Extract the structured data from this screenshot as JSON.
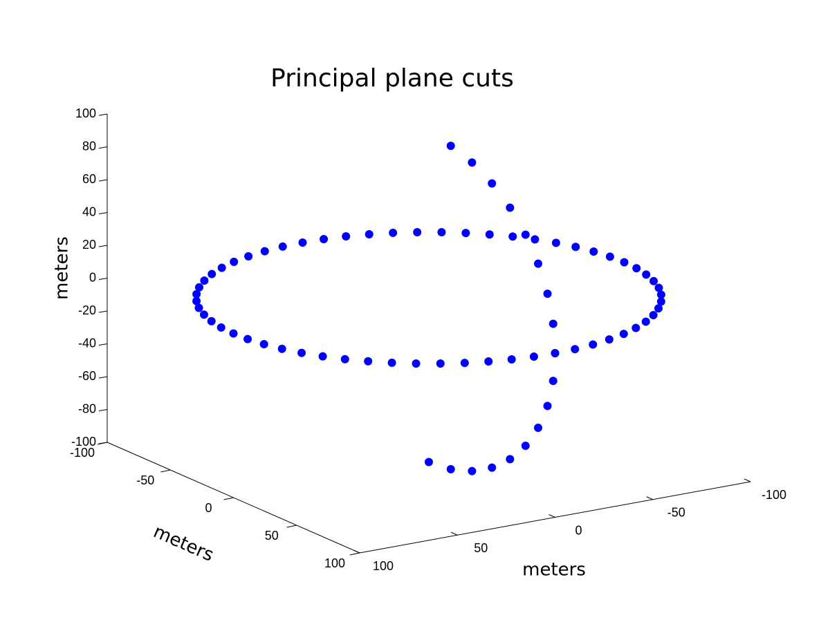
{
  "chart_data": {
    "type": "scatter3d",
    "title": "Principal plane cuts",
    "xlabel": "meters",
    "ylabel": "meters",
    "zlabel": "meters",
    "xlim": [
      -100,
      100
    ],
    "ylim": [
      -100,
      100
    ],
    "zlim": [
      -100,
      100
    ],
    "xticks": [
      -100,
      -50,
      0,
      50,
      100
    ],
    "yticks": [
      -100,
      -50,
      0,
      50,
      100
    ],
    "zticks": [
      -100,
      -80,
      -60,
      -40,
      -20,
      0,
      20,
      40,
      60,
      80,
      100
    ],
    "series": [
      {
        "color": "#0000ff",
        "x": [
          100,
          99.5,
          97.8,
          95.1,
          91.4,
          86.6,
          80.9,
          74.3,
          66.9,
          58.8,
          50,
          40.7,
          30.9,
          20.8,
          10.5,
          0,
          -10.5,
          -20.8,
          -30.9,
          -40.7,
          -50,
          -58.8,
          -66.9,
          -74.3,
          -80.9,
          -86.6,
          -91.4,
          -95.1,
          -97.8,
          -99.5,
          -100,
          -99.5,
          -97.8,
          -95.1,
          -91.4,
          -86.6,
          -80.9,
          -74.3,
          -66.9,
          -58.8,
          -50,
          -40.7,
          -30.9,
          -20.8,
          -10.5,
          0,
          10.5,
          20.8,
          30.9,
          40.7,
          50,
          58.8,
          66.9,
          74.3,
          80.9,
          86.6,
          91.4,
          95.1,
          97.8,
          99.5
        ],
        "y": [
          0,
          10.5,
          20.8,
          30.9,
          40.7,
          50,
          58.8,
          66.9,
          74.3,
          80.9,
          86.6,
          91.4,
          95.1,
          97.8,
          99.5,
          100,
          99.5,
          97.8,
          95.1,
          91.4,
          86.6,
          80.9,
          74.3,
          66.9,
          58.8,
          50,
          40.7,
          30.9,
          20.8,
          10.5,
          0,
          -10.5,
          -20.8,
          -30.9,
          -40.7,
          -50,
          -58.8,
          -66.9,
          -74.3,
          -80.9,
          -86.6,
          -91.4,
          -95.1,
          -97.8,
          -99.5,
          -100,
          -99.5,
          -97.8,
          -95.1,
          -91.4,
          -86.6,
          -80.9,
          -74.3,
          -66.9,
          -58.8,
          -50,
          -40.7,
          -30.9,
          -20.8,
          -10.5
        ],
        "z": [
          0,
          0,
          0,
          0,
          0,
          0,
          0,
          0,
          0,
          0,
          0,
          0,
          0,
          0,
          0,
          0,
          0,
          0,
          0,
          0,
          0,
          0,
          0,
          0,
          0,
          0,
          0,
          0,
          0,
          0,
          0,
          0,
          0,
          0,
          0,
          0,
          0,
          0,
          0,
          0,
          0,
          0,
          0,
          0,
          0,
          0,
          0,
          0,
          0,
          0,
          0,
          0,
          0,
          0,
          0,
          0,
          0,
          0,
          0,
          0
        ]
      },
      {
        "color": "#0000ff",
        "x": [
          0,
          0,
          0,
          0,
          0,
          0,
          0,
          0,
          0,
          0,
          0,
          0,
          0,
          0,
          0,
          0,
          0,
          0
        ],
        "y": [
          0,
          17.4,
          34.2,
          50,
          64.3,
          76.6,
          86.6,
          94,
          98.5,
          100,
          98.5,
          94,
          86.6,
          76.6,
          64.3,
          50,
          34.2,
          17.4
        ],
        "z": [
          -100,
          -98.5,
          -94,
          -86.6,
          -76.6,
          -64.3,
          -50,
          -34.2,
          -17.4,
          0,
          17.4,
          34.2,
          50,
          64.3,
          76.6,
          86.6,
          94,
          98.5
        ]
      }
    ]
  }
}
